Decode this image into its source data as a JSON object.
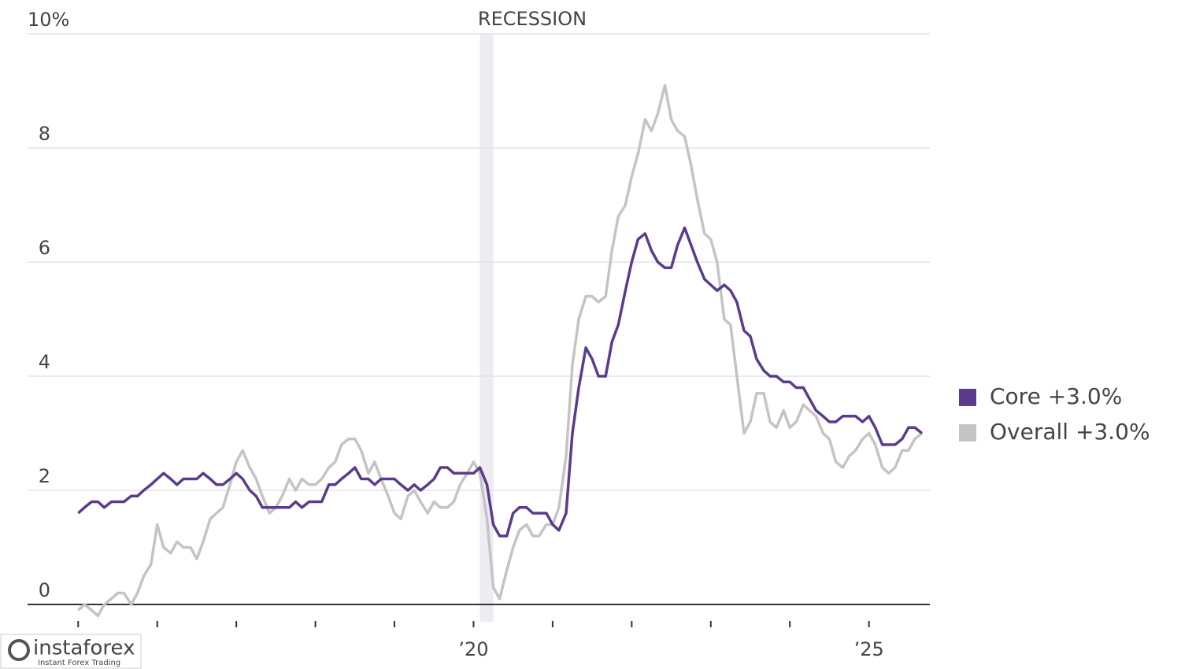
{
  "chart_data": {
    "type": "line",
    "annotation": "RECESSION",
    "recession": [
      2020.08,
      2020.25
    ],
    "x": [
      2015,
      2015.08,
      2015.17,
      2015.25,
      2015.33,
      2015.42,
      2015.5,
      2015.58,
      2015.67,
      2015.75,
      2015.83,
      2015.92,
      2016,
      2016.08,
      2016.17,
      2016.25,
      2016.33,
      2016.42,
      2016.5,
      2016.58,
      2016.67,
      2016.75,
      2016.83,
      2016.92,
      2017,
      2017.08,
      2017.17,
      2017.25,
      2017.33,
      2017.42,
      2017.5,
      2017.58,
      2017.67,
      2017.75,
      2017.83,
      2017.92,
      2018,
      2018.08,
      2018.17,
      2018.25,
      2018.33,
      2018.42,
      2018.5,
      2018.58,
      2018.67,
      2018.75,
      2018.83,
      2018.92,
      2019,
      2019.08,
      2019.17,
      2019.25,
      2019.33,
      2019.42,
      2019.5,
      2019.58,
      2019.67,
      2019.75,
      2019.83,
      2019.92,
      2020,
      2020.08,
      2020.17,
      2020.25,
      2020.33,
      2020.42,
      2020.5,
      2020.58,
      2020.67,
      2020.75,
      2020.83,
      2020.92,
      2021,
      2021.08,
      2021.17,
      2021.25,
      2021.33,
      2021.42,
      2021.5,
      2021.58,
      2021.67,
      2021.75,
      2021.83,
      2021.92,
      2022,
      2022.08,
      2022.17,
      2022.25,
      2022.33,
      2022.42,
      2022.5,
      2022.58,
      2022.67,
      2022.75,
      2022.83,
      2022.92,
      2023,
      2023.08,
      2023.17,
      2023.25,
      2023.33,
      2023.42,
      2023.5,
      2023.58,
      2023.67,
      2023.75,
      2023.83,
      2023.92,
      2024,
      2024.08,
      2024.17,
      2024.25,
      2024.33,
      2024.42,
      2024.5,
      2024.58,
      2024.67,
      2024.75,
      2024.83,
      2024.92,
      2025,
      2025.08,
      2025.17,
      2025.25,
      2025.33,
      2025.42,
      2025.5,
      2025.58,
      2025.67
    ],
    "series": [
      {
        "name": "Overall +3.0%",
        "color": "#c4c4c4",
        "values": [
          -0.1,
          0.0,
          -0.1,
          -0.2,
          0.0,
          0.1,
          0.2,
          0.2,
          0.0,
          0.2,
          0.5,
          0.7,
          1.4,
          1.0,
          0.9,
          1.1,
          1.0,
          1.0,
          0.8,
          1.1,
          1.5,
          1.6,
          1.7,
          2.1,
          2.5,
          2.7,
          2.4,
          2.2,
          1.9,
          1.6,
          1.7,
          1.9,
          2.2,
          2.0,
          2.2,
          2.1,
          2.1,
          2.2,
          2.4,
          2.5,
          2.8,
          2.9,
          2.9,
          2.7,
          2.3,
          2.5,
          2.2,
          1.9,
          1.6,
          1.5,
          1.9,
          2.0,
          1.8,
          1.6,
          1.8,
          1.7,
          1.7,
          1.8,
          2.1,
          2.3,
          2.5,
          2.3,
          1.5,
          0.3,
          0.1,
          0.6,
          1.0,
          1.3,
          1.4,
          1.2,
          1.2,
          1.4,
          1.4,
          1.7,
          2.6,
          4.2,
          5.0,
          5.4,
          5.4,
          5.3,
          5.4,
          6.2,
          6.8,
          7.0,
          7.5,
          7.9,
          8.5,
          8.3,
          8.6,
          9.1,
          8.5,
          8.3,
          8.2,
          7.7,
          7.1,
          6.5,
          6.4,
          6.0,
          5.0,
          4.9,
          4.0,
          3.0,
          3.2,
          3.7,
          3.7,
          3.2,
          3.1,
          3.4,
          3.1,
          3.2,
          3.5,
          3.4,
          3.3,
          3.0,
          2.9,
          2.5,
          2.4,
          2.6,
          2.7,
          2.9,
          3.0,
          2.8,
          2.4,
          2.3,
          2.4,
          2.7,
          2.7,
          2.9,
          3.0
        ]
      },
      {
        "name": "Core +3.0%",
        "color": "#5b3b8c",
        "values": [
          1.6,
          1.7,
          1.8,
          1.8,
          1.7,
          1.8,
          1.8,
          1.8,
          1.9,
          1.9,
          2.0,
          2.1,
          2.2,
          2.3,
          2.2,
          2.1,
          2.2,
          2.2,
          2.2,
          2.3,
          2.2,
          2.1,
          2.1,
          2.2,
          2.3,
          2.2,
          2.0,
          1.9,
          1.7,
          1.7,
          1.7,
          1.7,
          1.7,
          1.8,
          1.7,
          1.8,
          1.8,
          1.8,
          2.1,
          2.1,
          2.2,
          2.3,
          2.4,
          2.2,
          2.2,
          2.1,
          2.2,
          2.2,
          2.2,
          2.1,
          2.0,
          2.1,
          2.0,
          2.1,
          2.2,
          2.4,
          2.4,
          2.3,
          2.3,
          2.3,
          2.3,
          2.4,
          2.1,
          1.4,
          1.2,
          1.2,
          1.6,
          1.7,
          1.7,
          1.6,
          1.6,
          1.6,
          1.4,
          1.3,
          1.6,
          3.0,
          3.8,
          4.5,
          4.3,
          4.0,
          4.0,
          4.6,
          4.9,
          5.5,
          6.0,
          6.4,
          6.5,
          6.2,
          6.0,
          5.9,
          5.9,
          6.3,
          6.6,
          6.3,
          6.0,
          5.7,
          5.6,
          5.5,
          5.6,
          5.5,
          5.3,
          4.8,
          4.7,
          4.3,
          4.1,
          4.0,
          4.0,
          3.9,
          3.9,
          3.8,
          3.8,
          3.6,
          3.4,
          3.3,
          3.2,
          3.2,
          3.3,
          3.3,
          3.3,
          3.2,
          3.3,
          3.1,
          2.8,
          2.8,
          2.8,
          2.9,
          3.1,
          3.1,
          3.0
        ]
      }
    ],
    "xlim": [
      2014.36,
      2025.77
    ],
    "xticks": [
      2015,
      2016,
      2017,
      2018,
      2019,
      2020,
      2021,
      2022,
      2023,
      2024,
      2025
    ],
    "xtick_labels": [
      {
        "value": 2020,
        "label": "’20"
      },
      {
        "value": 2025,
        "label": "’25"
      }
    ],
    "ylim": [
      0,
      10
    ],
    "yticks": [
      0,
      2,
      4,
      6,
      8,
      {
        "value": 10,
        "label": "10%"
      }
    ],
    "grid": true
  },
  "watermark": {
    "name": "instaforex",
    "tagline": "Instant Forex Trading"
  }
}
